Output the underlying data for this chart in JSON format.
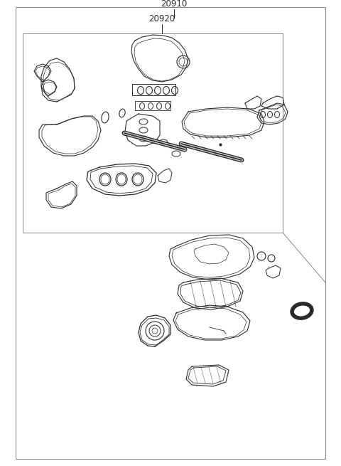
{
  "label_20910": "20910",
  "label_20920": "20920",
  "bg": "#ffffff",
  "lc": "#2a2a2a",
  "bc": "#888888",
  "fw": 4.8,
  "fh": 6.55,
  "dpi": 100
}
